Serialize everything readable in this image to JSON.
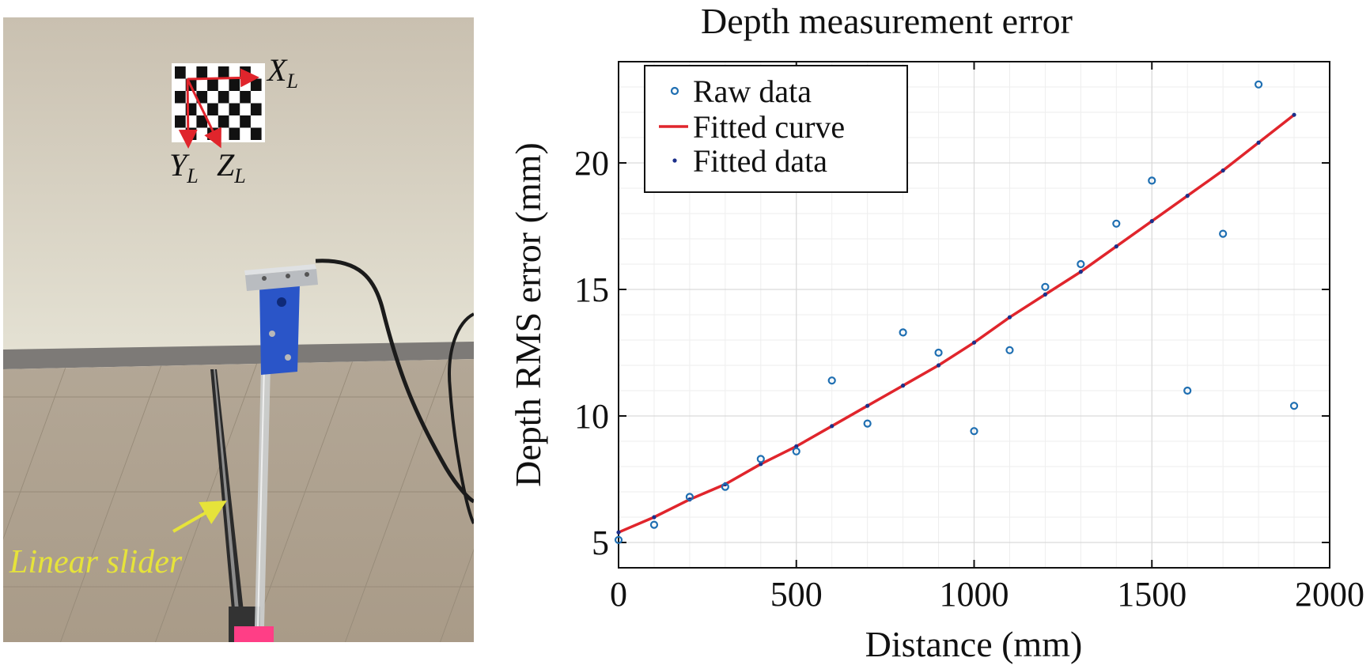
{
  "photo": {
    "axis_x": "X",
    "axis_y": "Y",
    "axis_z": "Z",
    "axis_subscript": "L",
    "slider_label": "Linear slider"
  },
  "chart_data": {
    "type": "scatter",
    "title": "Depth measurement error",
    "xlabel": "Distance (mm)",
    "ylabel": "Depth RMS error (mm)",
    "xlim": [
      0,
      2000
    ],
    "ylim": [
      4,
      24
    ],
    "xticks": [
      0,
      500,
      1000,
      1500,
      2000
    ],
    "yticks": [
      5,
      10,
      15,
      20
    ],
    "grid": true,
    "legend_position": "top-left",
    "series": [
      {
        "name": "Raw data",
        "style": "open-circle",
        "color": "#1f6fb2",
        "x": [
          0,
          100,
          200,
          300,
          400,
          500,
          600,
          700,
          800,
          900,
          1000,
          1100,
          1200,
          1300,
          1400,
          1500,
          1600,
          1700,
          1800,
          1900
        ],
        "y": [
          5.1,
          5.7,
          6.8,
          7.2,
          8.3,
          8.6,
          11.4,
          9.7,
          13.3,
          12.5,
          9.4,
          12.6,
          15.1,
          16.0,
          17.6,
          19.3,
          11.0,
          17.2,
          23.1,
          10.4
        ]
      },
      {
        "name": "Fitted curve",
        "style": "line",
        "color": "#e0252c",
        "x": [
          0,
          100,
          200,
          300,
          400,
          500,
          600,
          700,
          800,
          900,
          1000,
          1100,
          1200,
          1300,
          1400,
          1500,
          1600,
          1700,
          1800,
          1900
        ],
        "y": [
          5.4,
          6.0,
          6.7,
          7.3,
          8.1,
          8.8,
          9.6,
          10.4,
          11.2,
          12.0,
          12.9,
          13.9,
          14.8,
          15.7,
          16.7,
          17.7,
          18.7,
          19.7,
          20.8,
          21.9
        ]
      },
      {
        "name": "Fitted data",
        "style": "dot",
        "color": "#1c2f8a",
        "x": [
          0,
          100,
          200,
          300,
          400,
          500,
          600,
          700,
          800,
          900,
          1000,
          1100,
          1200,
          1300,
          1400,
          1500,
          1600,
          1700,
          1800,
          1900
        ],
        "y": [
          5.4,
          6.0,
          6.7,
          7.3,
          8.1,
          8.8,
          9.6,
          10.4,
          11.2,
          12.0,
          12.9,
          13.9,
          14.8,
          15.7,
          16.7,
          17.7,
          18.7,
          19.7,
          20.8,
          21.9
        ]
      }
    ]
  }
}
